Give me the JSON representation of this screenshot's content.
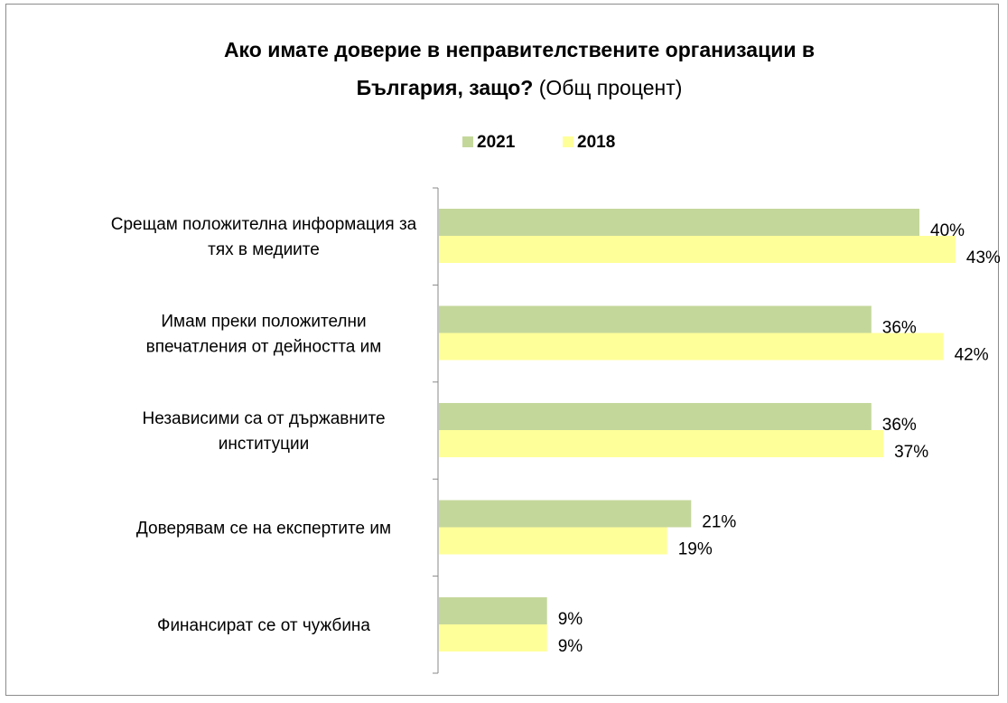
{
  "chart_data": {
    "type": "bar",
    "orientation": "horizontal",
    "title_line1": "Ако имате доверие в неправителствените организации в",
    "title_line2_bold": "България, защо?",
    "title_line2_normal": " (Общ процент)",
    "categories": [
      [
        "Срещам положителна информация за",
        "тях в медиите"
      ],
      [
        "Имам преки положителни",
        "впечатления от дейността им"
      ],
      [
        "Независими са от държавните",
        "институции"
      ],
      [
        "Доверявам се на експертите им"
      ],
      [
        "Финансират се от чужбина"
      ]
    ],
    "series": [
      {
        "name": "2021",
        "color": "#c4d79b",
        "values": [
          40,
          36,
          36,
          21,
          9
        ],
        "labels": [
          "40%",
          "36%",
          "36%",
          "21%",
          "9%"
        ]
      },
      {
        "name": "2018",
        "color": "#ffff99",
        "values": [
          43,
          42,
          37,
          19,
          9
        ],
        "labels": [
          "43%",
          "42%",
          "37%",
          "19%",
          "9%"
        ]
      }
    ],
    "xlim": [
      0,
      50
    ],
    "legend_position": "top",
    "grid": false
  }
}
